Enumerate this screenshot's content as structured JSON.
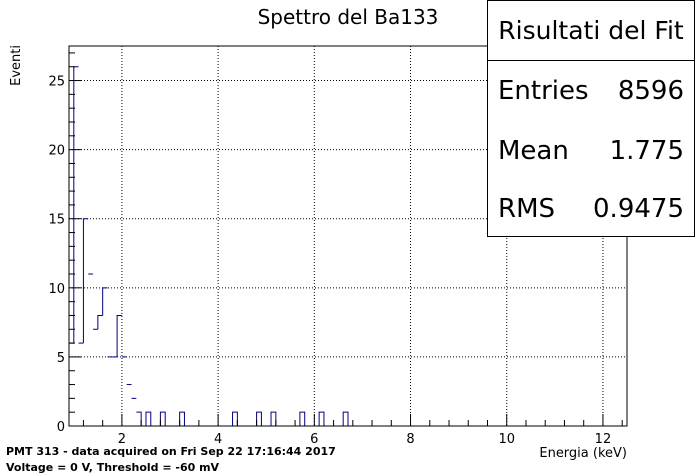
{
  "chart_data": {
    "type": "bar",
    "title": "Spettro del Ba133",
    "xlabel": "Energia (keV)",
    "ylabel": "Eventi",
    "xlim": [
      0.9,
      12.5
    ],
    "ylim": [
      0,
      27.5
    ],
    "x_ticks": [
      2,
      4,
      6,
      8,
      10,
      12
    ],
    "y_ticks": [
      0,
      5,
      10,
      15,
      20,
      25
    ],
    "grid": true,
    "bin_width": 0.1,
    "bins": [
      {
        "x": 0.9,
        "value": 6
      },
      {
        "x": 1.0,
        "value": 26
      },
      {
        "x": 1.1,
        "value": 6
      },
      {
        "x": 1.2,
        "value": 15
      },
      {
        "x": 1.3,
        "value": 11
      },
      {
        "x": 1.4,
        "value": 7
      },
      {
        "x": 1.5,
        "value": 8
      },
      {
        "x": 1.6,
        "value": 10
      },
      {
        "x": 1.7,
        "value": 5
      },
      {
        "x": 1.8,
        "value": 5
      },
      {
        "x": 1.9,
        "value": 8
      },
      {
        "x": 2.0,
        "value": 5
      },
      {
        "x": 2.1,
        "value": 3
      },
      {
        "x": 2.2,
        "value": 2
      },
      {
        "x": 2.3,
        "value": 1
      },
      {
        "x": 2.4,
        "value": 0
      },
      {
        "x": 2.5,
        "value": 1
      },
      {
        "x": 2.6,
        "value": 0
      },
      {
        "x": 2.7,
        "value": 0
      },
      {
        "x": 2.8,
        "value": 1
      },
      {
        "x": 2.9,
        "value": 0
      },
      {
        "x": 3.0,
        "value": 0
      },
      {
        "x": 3.1,
        "value": 0
      },
      {
        "x": 3.2,
        "value": 1
      },
      {
        "x": 4.3,
        "value": 1
      },
      {
        "x": 4.8,
        "value": 1
      },
      {
        "x": 5.1,
        "value": 1
      },
      {
        "x": 5.7,
        "value": 1
      },
      {
        "x": 6.1,
        "value": 1
      },
      {
        "x": 6.6,
        "value": 1
      }
    ],
    "line_color": "#000080"
  },
  "stats": {
    "title": "Risultati del Fit",
    "rows": [
      {
        "label": "Entries",
        "value": "8596"
      },
      {
        "label": "Mean",
        "value": "1.775"
      },
      {
        "label": "RMS",
        "value": "0.9475"
      }
    ]
  },
  "footer": {
    "line1": "PMT 313 - data acquired on Fri Sep 22 17:16:44 2017",
    "line2": "Voltage =  0 V, Threshold = -60 mV"
  }
}
